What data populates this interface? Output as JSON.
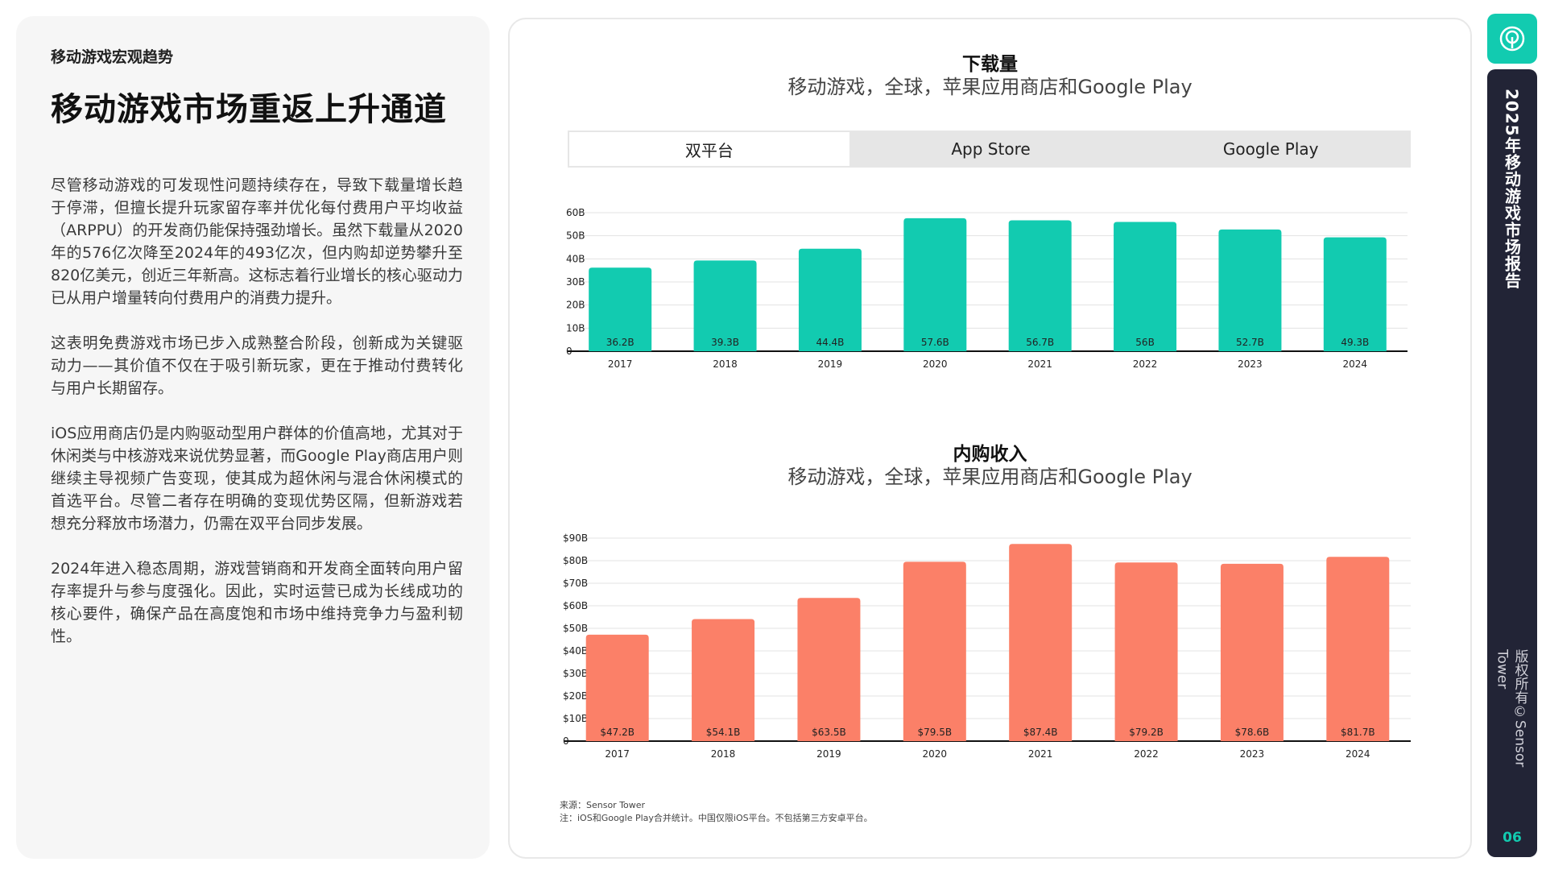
{
  "left": {
    "section_label": "移动游戏宏观趋势",
    "title": "移动游戏市场重返上升通道",
    "paragraphs": [
      "尽管移动游戏的可发现性问题持续存在，导致下载量增长趋于停滞，但擅长提升玩家留存率并优化每付费用户平均收益（ARPPU）的开发商仍能保持强劲增长。虽然下载量从2020年的576亿次降至2024年的493亿次，但内购却逆势攀升至820亿美元，创近三年新高。这标志着行业增长的核心驱动力已从用户增量转向付费用户的消费力提升。",
      "这表明免费游戏市场已步入成熟整合阶段，创新成为关键驱动力——其价值不仅在于吸引新玩家，更在于推动付费转化与用户长期留存。",
      "iOS应用商店仍是内购驱动型用户群体的价值高地，尤其对于休闲类与中核游戏来说优势显著，而Google Play商店用户则继续主导视频广告变现，使其成为超休闲与混合休闲模式的首选平台。尽管二者存在明确的变现优势区隔，但新游戏若想充分释放市场潜力，仍需在双平台同步发展。",
      "2024年进入稳态周期，游戏营销商和开发商全面转向用户留存率提升与参与度强化。因此，实时运营已成为长线成功的核心要件，确保产品在高度饱和市场中维持竞争力与盈利韧性。"
    ]
  },
  "tabs": [
    {
      "label": "双平台",
      "active": true
    },
    {
      "label": "App Store",
      "active": false
    },
    {
      "label": "Google Play",
      "active": false
    }
  ],
  "chart_data": [
    {
      "type": "bar",
      "title": "下载量",
      "subtitle": "移动游戏，全球，苹果应用商店和Google Play",
      "categories": [
        "2017",
        "2018",
        "2019",
        "2020",
        "2021",
        "2022",
        "2023",
        "2024"
      ],
      "values": [
        36.2,
        39.3,
        44.4,
        57.6,
        56.7,
        56,
        52.7,
        49.3
      ],
      "value_labels": [
        "36.2B",
        "39.3B",
        "44.4B",
        "57.6B",
        "56.7B",
        "56B",
        "52.7B",
        "49.3B"
      ],
      "ytick_labels": [
        "0",
        "10B",
        "20B",
        "30B",
        "40B",
        "50B",
        "60B"
      ],
      "ylim": [
        0,
        60
      ],
      "color": "#12cbb0",
      "grid": true
    },
    {
      "type": "bar",
      "title": "内购收入",
      "subtitle": "移动游戏，全球，苹果应用商店和Google Play",
      "categories": [
        "2017",
        "2018",
        "2019",
        "2020",
        "2021",
        "2022",
        "2023",
        "2024"
      ],
      "values": [
        47.2,
        54.1,
        63.5,
        79.5,
        87.4,
        79.2,
        78.6,
        81.7
      ],
      "value_labels": [
        "$47.2B",
        "$54.1B",
        "$63.5B",
        "$79.5B",
        "$87.4B",
        "$79.2B",
        "$78.6B",
        "$81.7B"
      ],
      "ytick_labels": [
        "0",
        "$10B",
        "$20B",
        "$30B",
        "$40B",
        "$50B",
        "$60B",
        "$70B",
        "$80B",
        "$90B"
      ],
      "ylim": [
        0,
        90
      ],
      "color": "#fb8068",
      "grid": true
    }
  ],
  "source": {
    "line1": "来源：Sensor Tower",
    "line2": "注：iOS和Google Play合并统计。中国仅限iOS平台。不包括第三方安卓平台。"
  },
  "sidebar": {
    "report_title": "2025年移动游戏市场报告",
    "copyright": "版权所有©Sensor Tower",
    "page_number": "06",
    "logo_icon": "sensor-tower-logo-icon"
  }
}
